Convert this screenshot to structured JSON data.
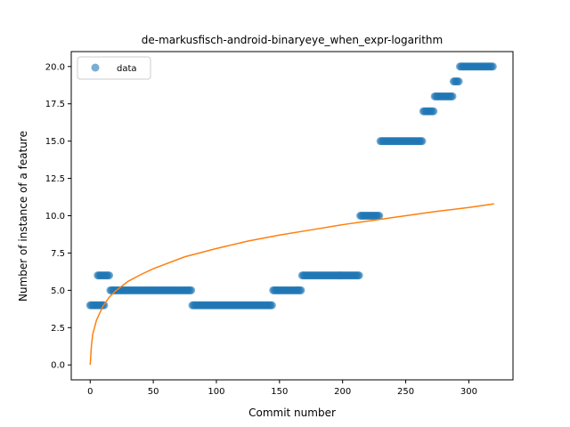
{
  "chart_data": {
    "type": "scatter",
    "title": "de-markusfisch-android-binaryeye_when_expr-logarithm",
    "xlabel": "Commit number",
    "ylabel": "Number of instance of a feature",
    "xlim": [
      -15,
      335
    ],
    "ylim": [
      -1,
      21
    ],
    "xticks": [
      0,
      50,
      100,
      150,
      200,
      250,
      300
    ],
    "yticks": [
      0.0,
      2.5,
      5.0,
      7.5,
      10.0,
      12.5,
      15.0,
      17.5,
      20.0
    ],
    "ytick_labels": [
      "0.0",
      "2.5",
      "5.0",
      "7.5",
      "10.0",
      "12.5",
      "15.0",
      "17.5",
      "20.0"
    ],
    "legend": {
      "placement": "top-left",
      "entries": [
        "data"
      ]
    },
    "grid": false,
    "series": [
      {
        "name": "data",
        "kind": "scatter",
        "color": "#1f77b4",
        "segments": [
          {
            "x_start": 0,
            "x_end": 7,
            "y": 4
          },
          {
            "x_start": 8,
            "x_end": 11,
            "y": 4
          },
          {
            "x_start": 6,
            "x_end": 8,
            "y": 6
          },
          {
            "x_start": 9,
            "x_end": 15,
            "y": 6
          },
          {
            "x_start": 16,
            "x_end": 80,
            "y": 5
          },
          {
            "x_start": 81,
            "x_end": 144,
            "y": 4
          },
          {
            "x_start": 145,
            "x_end": 167,
            "y": 5
          },
          {
            "x_start": 168,
            "x_end": 213,
            "y": 6
          },
          {
            "x_start": 214,
            "x_end": 229,
            "y": 10
          },
          {
            "x_start": 230,
            "x_end": 263,
            "y": 15
          },
          {
            "x_start": 264,
            "x_end": 272,
            "y": 17
          },
          {
            "x_start": 273,
            "x_end": 287,
            "y": 18
          },
          {
            "x_start": 288,
            "x_end": 292,
            "y": 19
          },
          {
            "x_start": 293,
            "x_end": 319,
            "y": 20
          }
        ]
      },
      {
        "name": "",
        "kind": "line",
        "color": "#ff7f0e",
        "curve": "logarithmic fit",
        "points": [
          [
            0,
            0.0
          ],
          [
            1,
            1.3
          ],
          [
            2,
            2.05
          ],
          [
            5,
            3.0
          ],
          [
            10,
            3.92
          ],
          [
            15,
            4.53
          ],
          [
            20,
            4.95
          ],
          [
            30,
            5.6
          ],
          [
            40,
            6.05
          ],
          [
            50,
            6.45
          ],
          [
            75,
            7.25
          ],
          [
            100,
            7.8
          ],
          [
            125,
            8.3
          ],
          [
            150,
            8.7
          ],
          [
            175,
            9.05
          ],
          [
            200,
            9.4
          ],
          [
            225,
            9.7
          ],
          [
            250,
            10.0
          ],
          [
            275,
            10.3
          ],
          [
            300,
            10.55
          ],
          [
            320,
            10.8
          ]
        ]
      }
    ]
  }
}
